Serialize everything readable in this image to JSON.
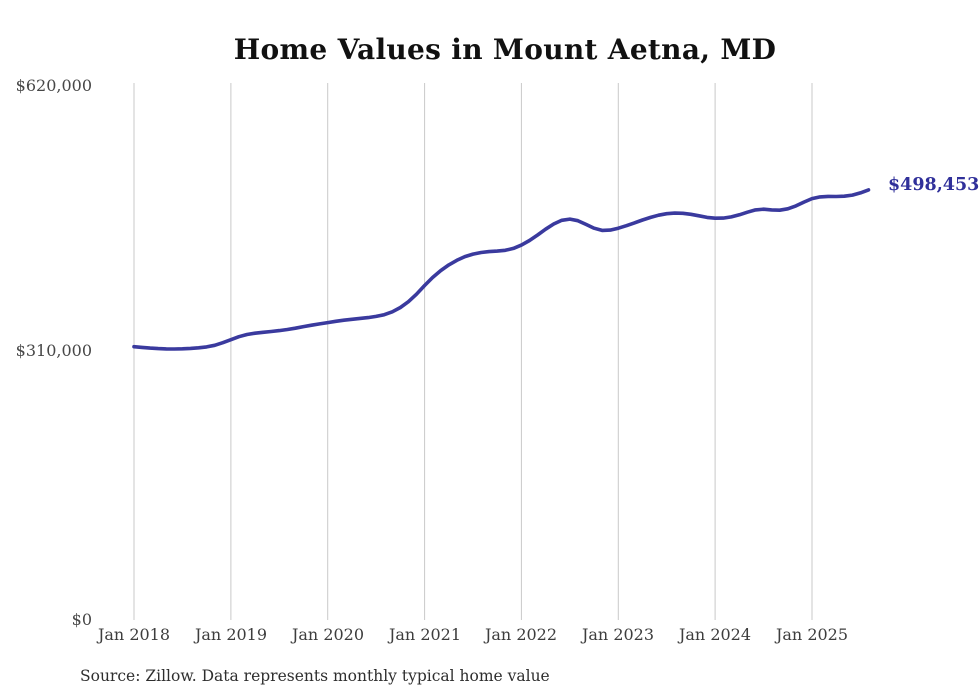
{
  "page": {
    "title": "Home Values in Mount Aetna, MD",
    "source_note": "Source: Zillow. Data represents monthly typical home value"
  },
  "chart_data": {
    "type": "line",
    "title": "Home Values in Mount Aetna, MD",
    "series_name": "Typical home value (USD)",
    "frequency": "monthly",
    "start_month": "Jan 2018",
    "end_month": "Aug 2025",
    "values": [
      316700,
      315900,
      315100,
      314500,
      314200,
      314100,
      314300,
      314700,
      315400,
      316500,
      318400,
      321300,
      324800,
      328300,
      330900,
      332400,
      333400,
      334300,
      335400,
      336700,
      338200,
      340000,
      341600,
      343200,
      344700,
      346100,
      347400,
      348500,
      349500,
      350500,
      351800,
      353800,
      357200,
      362200,
      368900,
      377600,
      387600,
      396900,
      404900,
      411500,
      416900,
      421100,
      424000,
      425900,
      426900,
      427500,
      428400,
      430600,
      434500,
      439800,
      446200,
      452900,
      458900,
      463200,
      464600,
      462700,
      458500,
      454000,
      451500,
      451900,
      454000,
      456900,
      460200,
      463500,
      466600,
      469100,
      470900,
      471600,
      471300,
      470200,
      468400,
      466600,
      465600,
      465700,
      467100,
      469600,
      472600,
      475300,
      476100,
      475200,
      474900,
      476500,
      479900,
      484300,
      488300,
      490300,
      490900,
      490800,
      491100,
      492400,
      494900,
      498453
    ],
    "final_value": 498453,
    "end_label": "$498,453",
    "x_tick_labels": [
      "Jan 2018",
      "Jan 2019",
      "Jan 2020",
      "Jan 2021",
      "Jan 2022",
      "Jan 2023",
      "Jan 2024",
      "Jan 2025"
    ],
    "y_tick_labels": [
      "$620,000",
      "$310,000",
      "$0"
    ],
    "y_ticks": [
      620000,
      310000,
      0
    ],
    "ylim": [
      0,
      620000
    ],
    "grid": "vertical-only",
    "legend": "none",
    "colors": {
      "line": "#3a3a9e",
      "grid": "#c9c9c9",
      "end_label": "#30309a",
      "title": "#111111",
      "tick_text": "#3d3d3d"
    }
  }
}
